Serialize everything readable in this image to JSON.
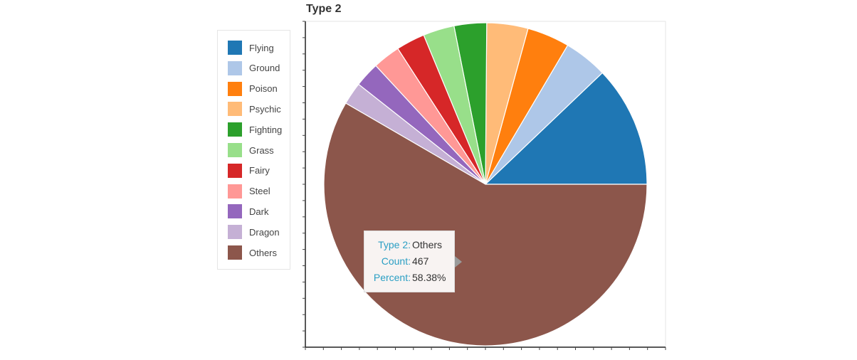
{
  "chart_data": {
    "type": "pie",
    "title": "Type 2",
    "categories": [
      "Flying",
      "Ground",
      "Poison",
      "Psychic",
      "Fighting",
      "Grass",
      "Fairy",
      "Steel",
      "Dark",
      "Dragon",
      "Others"
    ],
    "values": [
      97,
      35,
      34,
      33,
      26,
      25,
      23,
      22,
      20,
      18,
      467
    ],
    "colors": [
      "#1f77b4",
      "#aec7e8",
      "#ff7f0e",
      "#ffbb78",
      "#2ca02c",
      "#98df8a",
      "#d62728",
      "#ff9896",
      "#9467bd",
      "#c5b0d5",
      "#8c564b"
    ],
    "legend_position": "left",
    "tooltip": {
      "key1": "Type 2:",
      "val1": "Others",
      "key2": "Count:",
      "val2": "467",
      "key3": "Percent:",
      "val3": "58.38%"
    }
  }
}
